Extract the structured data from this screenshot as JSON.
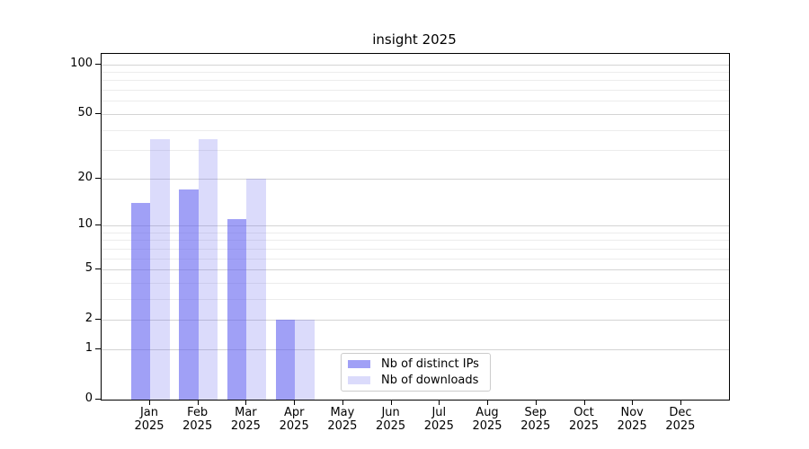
{
  "title": "insight 2025",
  "chart_data": {
    "type": "bar",
    "title": "insight 2025",
    "categories": [
      "Jan",
      "Feb",
      "Mar",
      "Apr",
      "May",
      "Jun",
      "Jul",
      "Aug",
      "Sep",
      "Oct",
      "Nov",
      "Dec"
    ],
    "x_year_label": "2025",
    "series": [
      {
        "name": "Nb of distinct IPs",
        "color": "rgba(92,92,239,0.58)",
        "values": [
          14,
          17,
          11,
          2,
          0,
          0,
          0,
          0,
          0,
          0,
          0,
          0
        ]
      },
      {
        "name": "Nb of downloads",
        "color": "rgba(92,92,239,0.22)",
        "values": [
          35,
          35,
          20,
          2,
          0,
          0,
          0,
          0,
          0,
          0,
          0,
          0
        ]
      }
    ],
    "xlabel": "",
    "ylabel": "",
    "yscale": "log10(1+y)",
    "ylim": [
      0,
      115
    ],
    "y_tick_values": [
      0,
      1,
      2,
      5,
      10,
      20,
      50,
      100
    ],
    "y_minor_gridline_values": [
      3,
      4,
      6,
      7,
      8,
      9,
      30,
      40,
      60,
      70,
      80,
      90
    ],
    "grid": "horizontal",
    "legend_position": "lower center",
    "colors": {
      "spine": "#000000",
      "major_grid": "#d4d4d4",
      "minor_grid": "#ececec",
      "text": "#000000",
      "background": "#ffffff"
    }
  }
}
